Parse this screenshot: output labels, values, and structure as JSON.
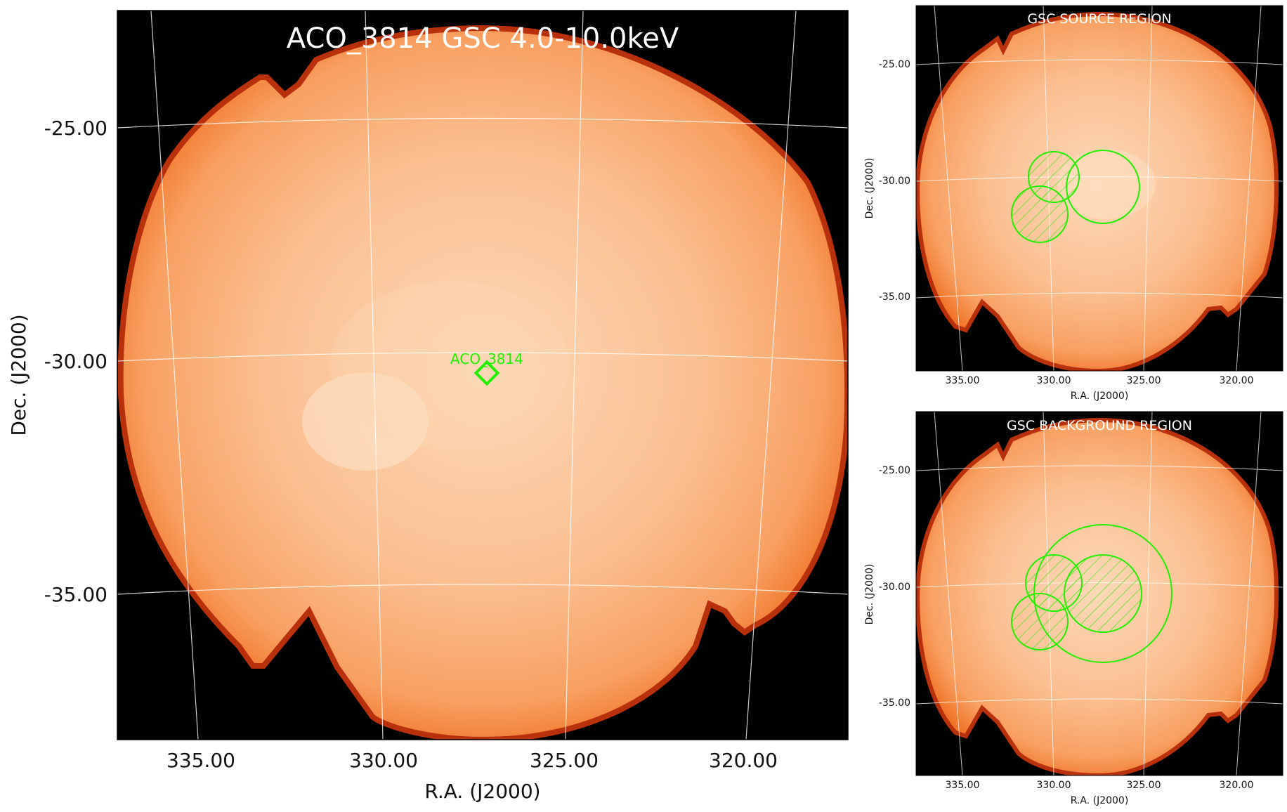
{
  "main_panel": {
    "title": "ACO_3814 GSC 4.0-10.0keV",
    "xlabel": "R.A. (J2000)",
    "ylabel": "Dec. (J2000)",
    "x_ticks": [
      "335.00",
      "330.00",
      "325.00",
      "320.00"
    ],
    "y_ticks": [
      "-25.00",
      "-30.00",
      "-35.00"
    ],
    "marker": {
      "label": "ACO_3814",
      "shape": "diamond",
      "color": "#22ee00"
    }
  },
  "source_panel": {
    "title": "GSC SOURCE REGION",
    "xlabel": "R.A. (J2000)",
    "ylabel": "Dec. (J2000)",
    "x_ticks": [
      "335.00",
      "330.00",
      "325.00",
      "320.00"
    ],
    "y_ticks": [
      "-25.00",
      "-30.00",
      "-35.00"
    ]
  },
  "background_panel": {
    "title": "GSC BACKGROUND REGION",
    "xlabel": "R.A. (J2000)",
    "ylabel": "Dec. (J2000)",
    "x_ticks": [
      "335.00",
      "330.00",
      "325.00",
      "320.00"
    ],
    "y_ticks": [
      "-25.00",
      "-30.00",
      "-35.00"
    ]
  },
  "colors": {
    "image_core": "#fcd7b4",
    "image_mid": "#f9a76e",
    "image_edge": "#f06a1e",
    "image_rim": "#8a1a0a",
    "sky_bg": "#000000",
    "region": "#22ee00",
    "grid": "#ffffff"
  }
}
